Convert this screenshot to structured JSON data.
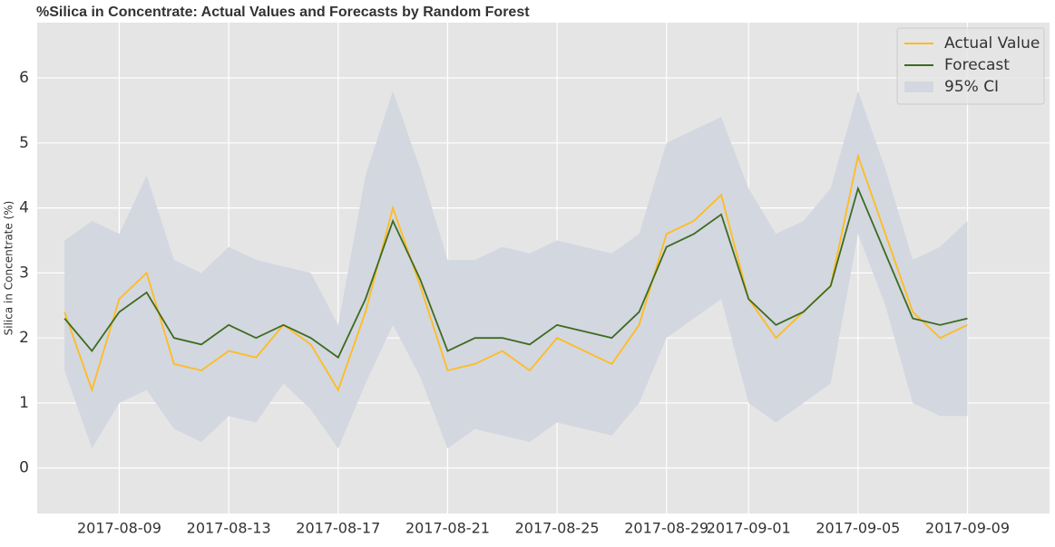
{
  "chart_data": {
    "type": "line",
    "title": "%Silica in Concentrate: Actual Values and Forecasts by Random Forest",
    "y_label": "Silica in Concentrate (%)",
    "x": [
      "2017-08-07",
      "2017-08-08",
      "2017-08-09",
      "2017-08-10",
      "2017-08-11",
      "2017-08-12",
      "2017-08-13",
      "2017-08-14",
      "2017-08-15",
      "2017-08-16",
      "2017-08-17",
      "2017-08-18",
      "2017-08-19",
      "2017-08-20",
      "2017-08-21",
      "2017-08-22",
      "2017-08-23",
      "2017-08-24",
      "2017-08-25",
      "2017-08-26",
      "2017-08-27",
      "2017-08-28",
      "2017-08-29",
      "2017-08-30",
      "2017-08-31",
      "2017-09-01",
      "2017-09-02",
      "2017-09-03",
      "2017-09-04",
      "2017-09-05",
      "2017-09-06",
      "2017-09-07",
      "2017-09-08",
      "2017-09-09"
    ],
    "series": [
      {
        "name": "Actual Value",
        "color": "#ffbc1f",
        "values": [
          2.4,
          1.2,
          2.6,
          3.0,
          1.6,
          1.5,
          1.8,
          1.7,
          2.2,
          1.9,
          1.2,
          2.4,
          4.0,
          2.8,
          1.5,
          1.6,
          1.8,
          1.5,
          2.0,
          1.8,
          1.6,
          2.2,
          3.6,
          3.8,
          4.2,
          2.6,
          2.0,
          2.4,
          2.8,
          4.8,
          3.6,
          2.4,
          2.0,
          2.2
        ]
      },
      {
        "name": "Forecast",
        "color": "#3d6b1f",
        "values": [
          2.3,
          1.8,
          2.4,
          2.7,
          2.0,
          1.9,
          2.2,
          2.0,
          2.2,
          2.0,
          1.7,
          2.6,
          3.8,
          2.9,
          1.8,
          2.0,
          2.0,
          1.9,
          2.2,
          2.1,
          2.0,
          2.4,
          3.4,
          3.6,
          3.9,
          2.6,
          2.2,
          2.4,
          2.8,
          4.3,
          3.3,
          2.3,
          2.2,
          2.3
        ]
      }
    ],
    "band": {
      "name": "95% CI",
      "color": "#d3d7e0",
      "lower": [
        1.5,
        0.3,
        1.0,
        1.2,
        0.6,
        0.4,
        0.8,
        0.7,
        1.3,
        0.9,
        0.3,
        1.3,
        2.2,
        1.4,
        0.3,
        0.6,
        0.5,
        0.4,
        0.7,
        0.6,
        0.5,
        1.0,
        2.0,
        2.3,
        2.6,
        1.0,
        0.7,
        1.0,
        1.3,
        3.6,
        2.5,
        1.0,
        0.8,
        0.8
      ],
      "upper": [
        3.5,
        3.8,
        3.6,
        4.5,
        3.2,
        3.0,
        3.4,
        3.2,
        3.1,
        3.0,
        2.2,
        4.5,
        5.8,
        4.6,
        3.2,
        3.2,
        3.4,
        3.3,
        3.5,
        3.4,
        3.3,
        3.6,
        5.0,
        5.2,
        5.4,
        4.3,
        3.6,
        3.8,
        4.3,
        5.8,
        4.6,
        3.2,
        3.4,
        3.8
      ]
    },
    "xlim": [
      "2017-08-06",
      "2017-09-12"
    ],
    "xticks": [
      "2017-08-09",
      "2017-08-13",
      "2017-08-17",
      "2017-08-21",
      "2017-08-25",
      "2017-08-29",
      "2017-09-01",
      "2017-09-05",
      "2017-09-09"
    ],
    "ylim": [
      -0.7,
      6.85
    ],
    "yticks": [
      0,
      1,
      2,
      3,
      4,
      5,
      6
    ],
    "grid": true,
    "legend": "upper right"
  }
}
